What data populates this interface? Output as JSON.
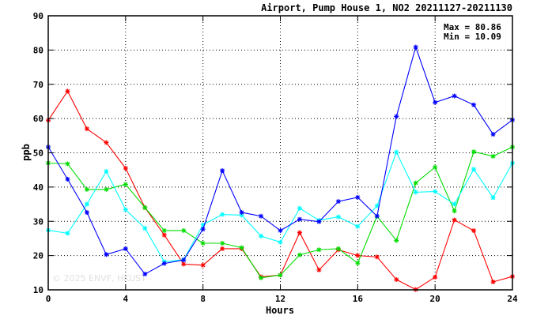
{
  "chart_data": {
    "type": "line",
    "title": "Airport, Pump House 1, NO2 20211127-20211130",
    "xlabel": "Hours",
    "ylabel": "ppb",
    "xlim": [
      0,
      24
    ],
    "ylim": [
      10,
      90
    ],
    "xticks": [
      "0",
      "4",
      "8",
      "12",
      "16",
      "20",
      "24"
    ],
    "yticks": [
      "10",
      "20",
      "30",
      "40",
      "50",
      "60",
      "70",
      "80",
      "90"
    ],
    "grid": true,
    "stats": {
      "max": "Max = 80.86",
      "min": "Min = 10.09"
    },
    "watermark": "© 2025  ENVF, HKUST",
    "x": [
      0,
      1,
      2,
      3,
      4,
      5,
      6,
      7,
      8,
      9,
      10,
      11,
      12,
      13,
      14,
      15,
      16,
      17,
      18,
      19,
      20,
      21,
      22,
      23,
      24
    ],
    "series": [
      {
        "color": "#ff0000",
        "values": [
          59.5,
          68,
          57,
          53,
          45.5,
          34,
          26,
          17.5,
          17.2,
          22,
          22,
          13.8,
          14.3,
          26.7,
          15.8,
          21.7,
          20,
          19.6,
          13,
          10.09,
          13.7,
          30.4,
          27.3,
          12.3,
          13.9
        ]
      },
      {
        "color": "#00dd00",
        "values": [
          47,
          46.8,
          39.3,
          39.3,
          40.8,
          34,
          27.3,
          27.3,
          23.6,
          23.6,
          22.3,
          13.5,
          14.3,
          20.2,
          21.7,
          22,
          17.8,
          31.5,
          24.4,
          41.2,
          45.8,
          33,
          50.3,
          49,
          51.7
        ]
      },
      {
        "color": "#00ffff",
        "values": [
          27.4,
          26.5,
          35,
          44.6,
          33.4,
          28,
          18.2,
          18.8,
          29,
          32,
          31.8,
          25.7,
          23.9,
          33.8,
          30.3,
          31.3,
          28.5,
          34.5,
          50.2,
          38.5,
          38.7,
          35,
          45.2,
          36.9,
          47
        ]
      },
      {
        "color": "#0000ff",
        "values": [
          51.7,
          42.3,
          32.6,
          20.3,
          22,
          14.6,
          17.7,
          18.7,
          27.7,
          44.8,
          32.6,
          31.5,
          27.3,
          30.6,
          29.9,
          35.8,
          37,
          31.5,
          60.6,
          80.86,
          64.7,
          66.6,
          64,
          55.4,
          59.6
        ]
      }
    ]
  }
}
